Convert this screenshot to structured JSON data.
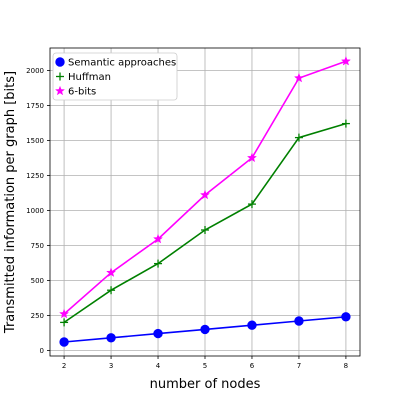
{
  "chart_data": {
    "type": "line",
    "xlabel": "number of nodes",
    "ylabel": "Transmitted information per graph [bits]",
    "x": [
      2,
      3,
      4,
      5,
      6,
      7,
      8
    ],
    "xlim": [
      1.7,
      8.3
    ],
    "ylim": [
      -40,
      2160
    ],
    "xticks": [
      "2",
      "3",
      "4",
      "5",
      "6",
      "7",
      "8"
    ],
    "yticks": [
      0,
      250,
      500,
      750,
      1000,
      1250,
      1500,
      1750,
      2000
    ],
    "grid": true,
    "legend_position": "top-left",
    "series": [
      {
        "name": "Semantic approaches",
        "color": "#0000ff",
        "marker": "circle",
        "values": [
          60,
          90,
          120,
          150,
          180,
          210,
          240
        ]
      },
      {
        "name": "Huffman",
        "color": "#008000",
        "marker": "plus",
        "values": [
          200,
          430,
          620,
          860,
          1045,
          1520,
          1620
        ]
      },
      {
        "name": "6-bits",
        "color": "#ff00ff",
        "marker": "star",
        "values": [
          260,
          555,
          795,
          1110,
          1375,
          1945,
          2065
        ]
      }
    ]
  }
}
